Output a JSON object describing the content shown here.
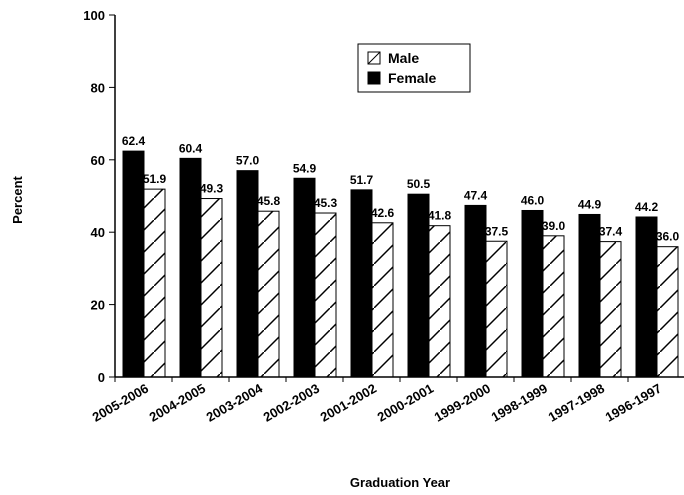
{
  "chart_data": {
    "type": "bar",
    "categories": [
      "2005-2006",
      "2004-2005",
      "2003-2004",
      "2002-2003",
      "2001-2002",
      "2000-2001",
      "1999-2000",
      "1998-1999",
      "1997-1998",
      "1996-1997"
    ],
    "series": [
      {
        "name": "Female",
        "color": "#000000",
        "values": [
          62.4,
          60.4,
          57.0,
          54.9,
          51.7,
          50.5,
          47.4,
          46.0,
          44.9,
          44.2
        ],
        "value_labels": [
          "62.4",
          "60.4",
          "57.0",
          "54.9",
          "51.7",
          "50.5",
          "47.4",
          "46.0",
          "44.9",
          "44.2"
        ]
      },
      {
        "name": "Male",
        "color": "#ffffff",
        "pattern": "hatch",
        "values": [
          51.9,
          49.3,
          45.8,
          45.3,
          42.6,
          41.8,
          37.5,
          39.0,
          37.4,
          36.0
        ],
        "value_labels": [
          "51.9",
          "49.3",
          "45.8",
          "45.3",
          "42.6",
          "41.8",
          "37.5",
          "39.0",
          "37.4",
          "36.0"
        ]
      }
    ],
    "legend_order": [
      "Male",
      "Female"
    ],
    "xlabel": "Graduation Year",
    "ylabel": "Percent",
    "ylim": [
      0,
      100
    ],
    "yticks": [
      0,
      20,
      40,
      60,
      80,
      100
    ]
  }
}
